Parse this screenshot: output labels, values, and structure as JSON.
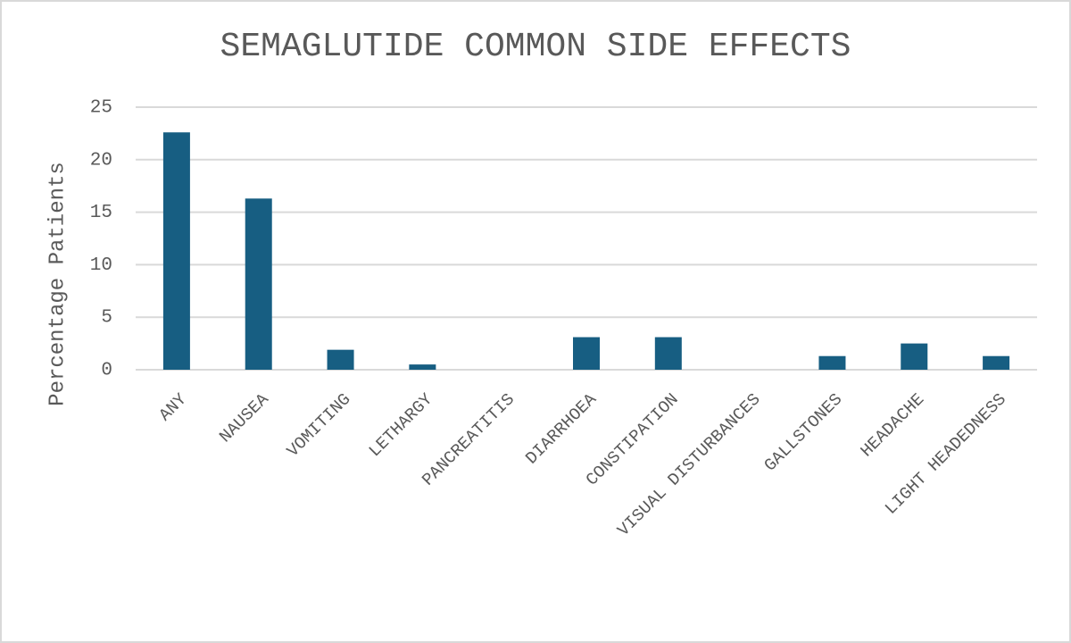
{
  "chart_data": {
    "type": "bar",
    "title": "SEMAGLUTIDE COMMON SIDE EFFECTS",
    "y_label": "Percentage Patients",
    "categories": [
      "ANY",
      "NAUSEA",
      "VOMITING",
      "LETHARGY",
      "PANCREATITIS",
      "DIARRHOEA",
      "CONSTIPATION",
      "VISUAL DISTURBANCES",
      "GALLSTONES",
      "HEADACHE",
      "LIGHT HEADEDNESS"
    ],
    "values": [
      22.6,
      16.3,
      1.9,
      0.5,
      0,
      3.1,
      3.1,
      0,
      1.3,
      2.5,
      1.3
    ],
    "color": "#175e82",
    "ylim": [
      0,
      25
    ],
    "yticks": [
      0,
      5,
      10,
      15,
      20,
      25
    ],
    "grid": true
  }
}
